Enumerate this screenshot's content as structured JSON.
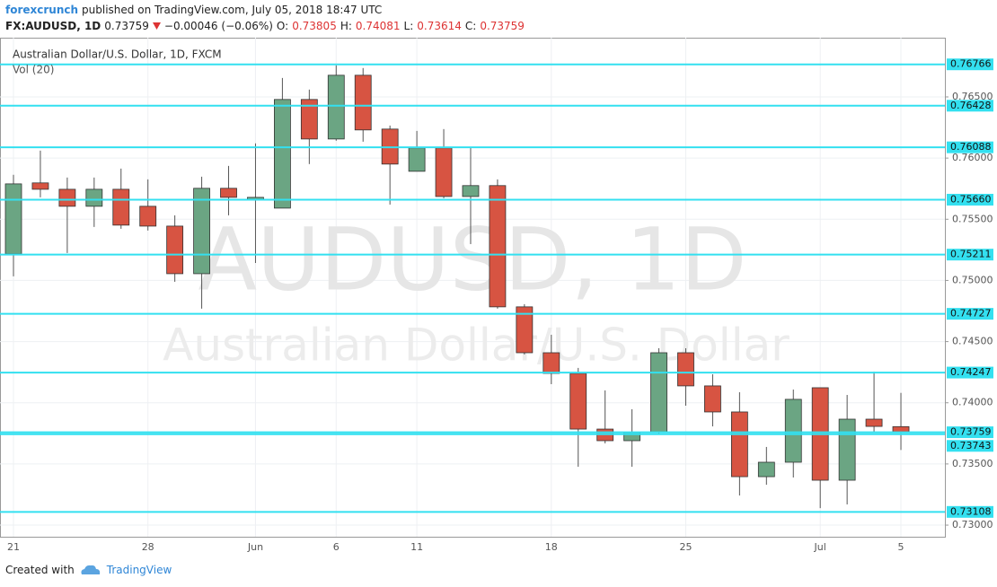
{
  "header": {
    "author": "forexcrunch",
    "published": "published on TradingView.com, July 05, 2018 18:47 UTC"
  },
  "quote": {
    "symbol": "FX:AUDUSD, 1D",
    "last": "0.73759",
    "change": "−0.00046 (−0.06%)",
    "open_label": "O:",
    "open": "0.73805",
    "high_label": "H:",
    "high": "0.74081",
    "low_label": "L:",
    "low": "0.73614",
    "close_label": "C:",
    "close": "0.73759"
  },
  "chart_data": {
    "type": "candlestick",
    "title": "Australian Dollar/U.S. Dollar, 1D, FXCM",
    "subtitle": "Vol (20)",
    "watermark_symbol": "AUDUSD, 1D",
    "watermark_description": "Australian Dollar/U.S. Dollar",
    "categories": [
      "21",
      null,
      null,
      null,
      null,
      "28",
      null,
      null,
      null,
      "Jun",
      null,
      null,
      "6",
      null,
      null,
      "11",
      null,
      null,
      null,
      null,
      "18",
      null,
      null,
      null,
      null,
      "25",
      null,
      null,
      null,
      null,
      "Jul",
      null,
      null,
      "5"
    ],
    "series": {
      "open": [
        0.75217,
        0.75797,
        0.75745,
        0.75606,
        0.75745,
        0.75606,
        0.75444,
        0.75055,
        0.75753,
        0.75664,
        0.75591,
        0.76479,
        0.76156,
        0.76677,
        0.76237,
        0.75892,
        0.76083,
        0.75686,
        0.75775,
        0.74784,
        0.74409,
        0.7424,
        0.73785,
        0.7369,
        0.73756,
        0.74409,
        0.74138,
        0.73925,
        0.73396,
        0.73514,
        0.74123,
        0.73367,
        0.73866,
        0.73805
      ],
      "high": [
        0.75863,
        0.76061,
        0.75841,
        0.75841,
        0.75914,
        0.75826,
        0.75532,
        0.75848,
        0.75936,
        0.7612,
        0.76655,
        0.7656,
        0.76758,
        0.76736,
        0.76266,
        0.76222,
        0.76237,
        0.76083,
        0.75826,
        0.74806,
        0.74556,
        0.74285,
        0.74101,
        0.73947,
        0.74446,
        0.74446,
        0.74233,
        0.74086,
        0.73639,
        0.74108,
        0.74123,
        0.74064,
        0.74255,
        0.74081
      ],
      "low": [
        0.75033,
        0.75679,
        0.75224,
        0.75437,
        0.75422,
        0.75408,
        0.74989,
        0.74769,
        0.75532,
        0.75143,
        0.75591,
        0.75951,
        0.76142,
        0.76134,
        0.7562,
        0.75892,
        0.75672,
        0.75297,
        0.74769,
        0.74395,
        0.74152,
        0.73477,
        0.73668,
        0.73477,
        0.73741,
        0.73976,
        0.73807,
        0.73242,
        0.7333,
        0.73389,
        0.73139,
        0.73169,
        0.73763,
        0.73614
      ],
      "close": [
        0.75789,
        0.75745,
        0.75606,
        0.75745,
        0.75452,
        0.75444,
        0.75055,
        0.75753,
        0.75679,
        0.75679,
        0.76479,
        0.76156,
        0.76677,
        0.7623,
        0.75951,
        0.76083,
        0.75686,
        0.75775,
        0.74784,
        0.74409,
        0.7424,
        0.73785,
        0.7369,
        0.73756,
        0.74409,
        0.74138,
        0.73925,
        0.73396,
        0.73514,
        0.74028,
        0.73367,
        0.73866,
        0.73807,
        0.73759
      ]
    },
    "up_color": "#6ba583",
    "down_color": "#d75442",
    "level_color": "#33e0f0",
    "ylim": [
      0.72905,
      0.76984
    ],
    "yticks": [
      {
        "value": 0.73,
        "label": "0.73000"
      },
      {
        "value": 0.735,
        "label": "0.73500"
      },
      {
        "value": 0.74,
        "label": "0.74000"
      },
      {
        "value": 0.745,
        "label": "0.74500"
      },
      {
        "value": 0.75,
        "label": "0.75000"
      },
      {
        "value": 0.755,
        "label": "0.75500"
      },
      {
        "value": 0.76,
        "label": "0.76000"
      },
      {
        "value": 0.765,
        "label": "0.76500"
      }
    ],
    "levels": [
      {
        "value": 0.76766,
        "label": "0.76766"
      },
      {
        "value": 0.76428,
        "label": "0.76428"
      },
      {
        "value": 0.76088,
        "label": "0.76088"
      },
      {
        "value": 0.7566,
        "label": "0.75660"
      },
      {
        "value": 0.75211,
        "label": "0.75211"
      },
      {
        "value": 0.74727,
        "label": "0.74727"
      },
      {
        "value": 0.74247,
        "label": "0.74247"
      },
      {
        "value": 0.73759,
        "label": "0.73759"
      },
      {
        "value": 0.73743,
        "label": "0.73743"
      },
      {
        "value": 0.73108,
        "label": "0.73108"
      }
    ],
    "grid": true
  },
  "footer": {
    "created": "Created with",
    "brand": "TradingView"
  }
}
